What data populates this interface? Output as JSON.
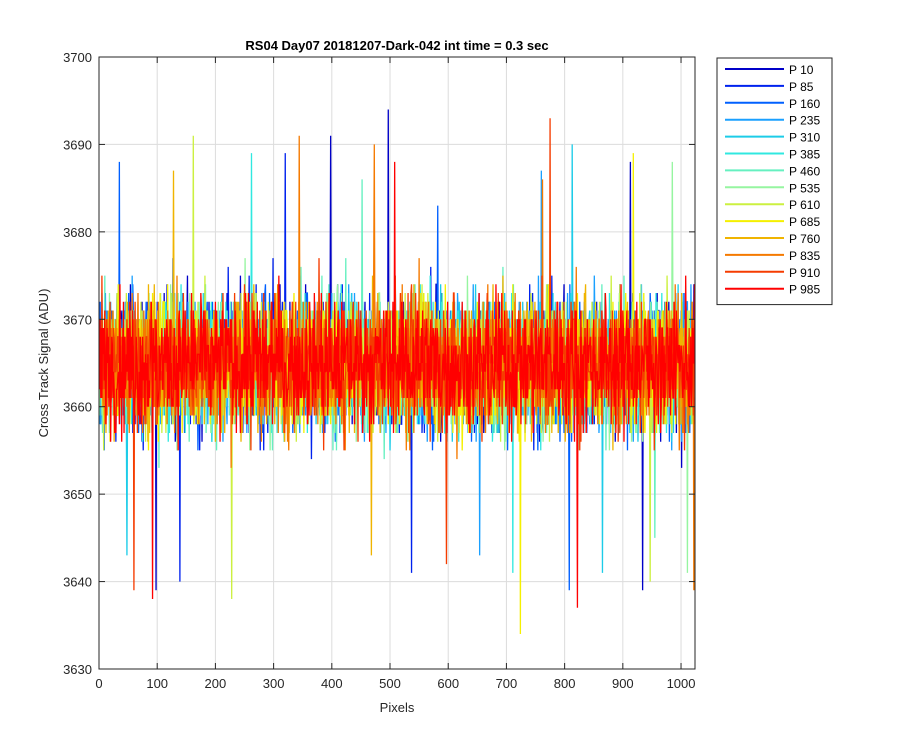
{
  "chart_data": {
    "type": "line",
    "title": "RS04 Day07 20181207-Dark-042 int time = 0.3 sec",
    "xlabel": "Pixels",
    "ylabel": "Cross Track Signal (ADU)",
    "xlim": [
      0,
      1024
    ],
    "ylim": [
      3630,
      3700
    ],
    "xticks": [
      0,
      100,
      200,
      300,
      400,
      500,
      600,
      700,
      800,
      900,
      1000
    ],
    "yticks": [
      3630,
      3640,
      3650,
      3660,
      3670,
      3680,
      3690,
      3700
    ],
    "grid": true,
    "legend_position": "outside-top-right",
    "noise": {
      "mean": 3665,
      "typical_min": 3651,
      "typical_max": 3680
    },
    "series": [
      {
        "name": "P 10",
        "color": "#0000c8",
        "spikes": [
          [
            497,
            3694
          ],
          [
            398,
            3691
          ],
          [
            913,
            3688
          ],
          [
            98,
            3639
          ],
          [
            934,
            3639
          ]
        ]
      },
      {
        "name": "P 85",
        "color": "#0022ee",
        "spikes": [
          [
            320,
            3689
          ],
          [
            537,
            3641
          ],
          [
            139,
            3640
          ]
        ]
      },
      {
        "name": "P 160",
        "color": "#0060ff",
        "spikes": [
          [
            35,
            3688
          ],
          [
            808,
            3639
          ],
          [
            582,
            3683
          ]
        ]
      },
      {
        "name": "P 235",
        "color": "#1aa0ff",
        "spikes": [
          [
            760,
            3687
          ],
          [
            654,
            3643
          ]
        ]
      },
      {
        "name": "P 310",
        "color": "#1ccce8",
        "spikes": [
          [
            813,
            3690
          ],
          [
            48,
            3643
          ],
          [
            865,
            3641
          ]
        ]
      },
      {
        "name": "P 385",
        "color": "#30e8e0",
        "spikes": [
          [
            262,
            3689
          ],
          [
            711,
            3641
          ]
        ]
      },
      {
        "name": "P 460",
        "color": "#66f0c0",
        "spikes": [
          [
            452,
            3686
          ],
          [
            955,
            3645
          ]
        ]
      },
      {
        "name": "P 535",
        "color": "#96f5a0",
        "spikes": [
          [
            985,
            3688
          ],
          [
            1011,
            3641
          ]
        ]
      },
      {
        "name": "P 610",
        "color": "#ccf040",
        "spikes": [
          [
            162,
            3691
          ],
          [
            228,
            3638
          ],
          [
            947,
            3640
          ]
        ]
      },
      {
        "name": "P 685",
        "color": "#f5f000",
        "spikes": [
          [
            724,
            3634
          ],
          [
            918,
            3689
          ]
        ]
      },
      {
        "name": "P 760",
        "color": "#f0b400",
        "spikes": [
          [
            128,
            3687
          ],
          [
            468,
            3643
          ]
        ]
      },
      {
        "name": "P 835",
        "color": "#f57a00",
        "spikes": [
          [
            344,
            3691
          ],
          [
            473,
            3690
          ],
          [
            762,
            3686
          ],
          [
            1022,
            3639
          ]
        ]
      },
      {
        "name": "P 910",
        "color": "#f53c00",
        "spikes": [
          [
            775,
            3693
          ],
          [
            60,
            3639
          ],
          [
            597,
            3642
          ]
        ]
      },
      {
        "name": "P 985",
        "color": "#ff0000",
        "spikes": [
          [
            92,
            3638
          ],
          [
            822,
            3637
          ],
          [
            508,
            3688
          ]
        ]
      }
    ]
  }
}
